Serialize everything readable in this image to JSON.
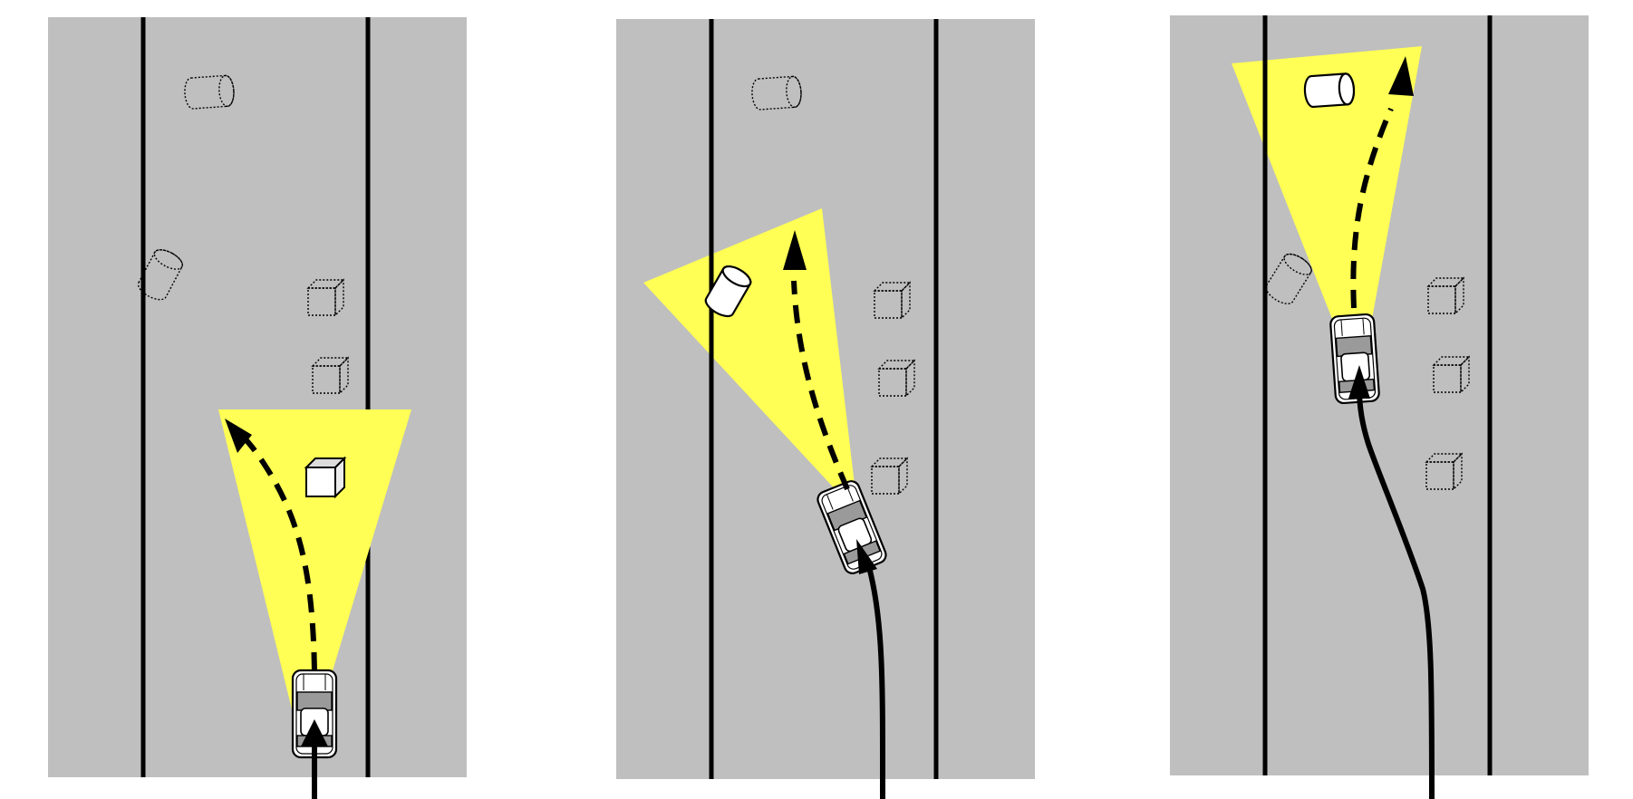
{
  "colors": {
    "background": "#ffffff",
    "road": "#bfbfbf",
    "lane_line": "#000000",
    "sensor_cone": "#ffff55",
    "object_fill": "#ffffff",
    "object_stroke": "#000000"
  },
  "panels": [
    {
      "id": "panel-1",
      "detected_objects": [
        "box"
      ],
      "undetected_objects": [
        "cylinder",
        "cylinder",
        "box",
        "box"
      ],
      "planned_path": "dashed",
      "driven_path": "solid"
    },
    {
      "id": "panel-2",
      "detected_objects": [
        "cylinder"
      ],
      "undetected_objects": [
        "cylinder",
        "box",
        "box",
        "box"
      ],
      "planned_path": "dashed",
      "driven_path": "solid"
    },
    {
      "id": "panel-3",
      "detected_objects": [
        "cylinder"
      ],
      "undetected_objects": [
        "cylinder",
        "box",
        "box",
        "box"
      ],
      "planned_path": "dashed",
      "driven_path": "solid"
    }
  ]
}
